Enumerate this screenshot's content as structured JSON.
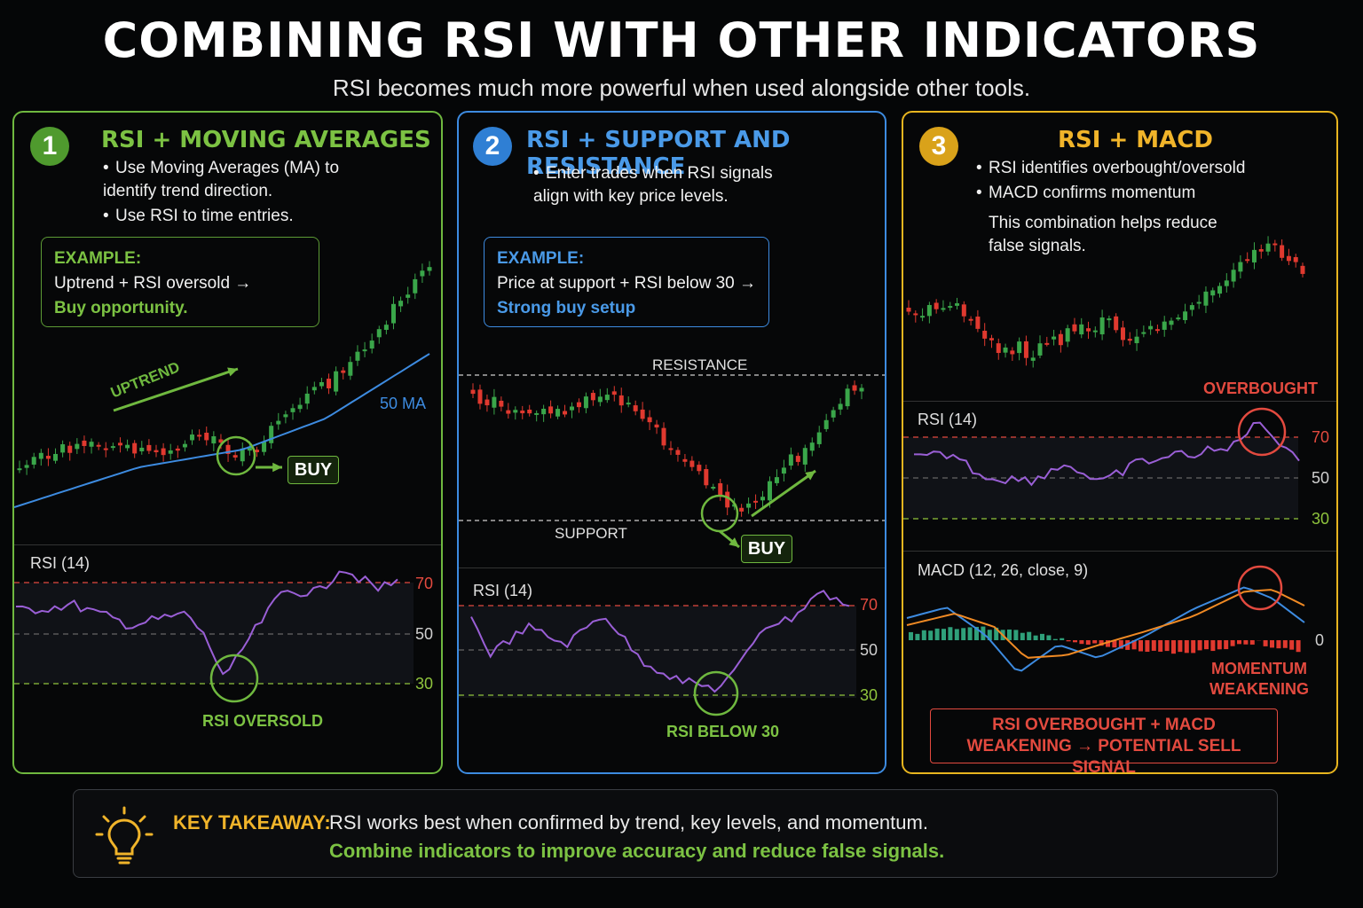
{
  "header": {
    "title": "COMBINING RSI WITH OTHER INDICATORS",
    "subtitle": "RSI becomes much more powerful when used alongside other tools."
  },
  "colors": {
    "green": "#6fb83f",
    "blue": "#3d8be0",
    "gold": "#e8b51f",
    "red": "#e34a3f",
    "purple": "#9a5fd6"
  },
  "panel1": {
    "number": "1",
    "title": "RSI + MOVING AVERAGES",
    "bullets": [
      "Use Moving Averages (MA) to identify trend direction.",
      "Use RSI to time entries."
    ],
    "example_heading": "EXAMPLE:",
    "example_text": "Uptrend + RSI oversold →",
    "example_result": "Buy opportunity.",
    "uptrend_label": "UPTREND",
    "ma_label": "50 MA",
    "buy_label": "BUY",
    "rsi_label": "RSI (14)",
    "rsi_levels": [
      "70",
      "50",
      "30"
    ],
    "rsi_note": "RSI OVERSOLD"
  },
  "panel2": {
    "number": "2",
    "title": "RSI + SUPPORT AND RESISTANCE",
    "bullets": [
      "Enter trades when RSI signals align with key price levels."
    ],
    "example_heading": "EXAMPLE:",
    "example_text": "Price at support + RSI below 30 →",
    "example_result": "Strong buy setup",
    "resistance_label": "RESISTANCE",
    "support_label": "SUPPORT",
    "buy_label": "BUY",
    "rsi_label": "RSI (14)",
    "rsi_levels": [
      "70",
      "50",
      "30"
    ],
    "rsi_note": "RSI BELOW 30"
  },
  "panel3": {
    "number": "3",
    "title": "RSI + MACD",
    "bullets": [
      "RSI identifies overbought/oversold",
      "MACD confirms momentum"
    ],
    "note": "This combination helps reduce false signals.",
    "overbought_label": "OVERBOUGHT",
    "rsi_label": "RSI (14)",
    "rsi_levels": [
      "70",
      "50",
      "30"
    ],
    "macd_label": "MACD (12, 26, close, 9)",
    "macd_zero": "0",
    "momentum_note": "MOMENTUM WEAKENING",
    "signal_box": "RSI OVERBOUGHT + MACD WEAKENING → POTENTIAL SELL SIGNAL"
  },
  "takeaway": {
    "icon": "lightbulb-icon",
    "label": "KEY TAKEAWAY:",
    "text": "RSI works best when confirmed by trend, key levels, and momentum.",
    "highlight": "Combine indicators to improve accuracy and reduce false signals."
  }
}
